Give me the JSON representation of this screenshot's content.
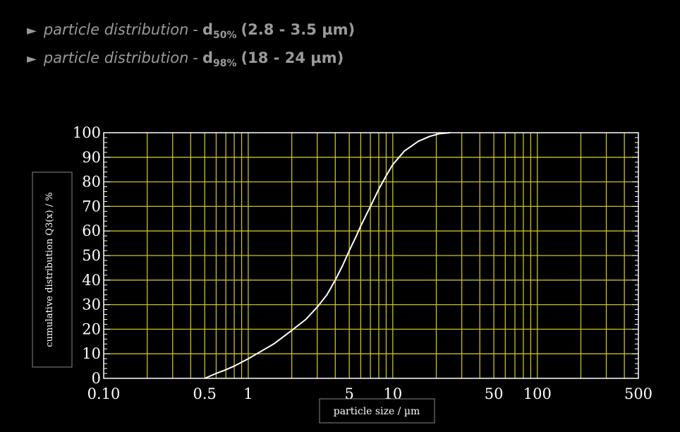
{
  "specs": [
    {
      "label": "particle distribution",
      "dash": "-",
      "symbol": "d",
      "subscript": "50%",
      "range": "(2.8 - 3.5 µm)"
    },
    {
      "label": "particle distribution",
      "dash": "-",
      "symbol": "d",
      "subscript": "98%",
      "range": "(18 - 24 µm)"
    }
  ],
  "chart_data": {
    "type": "line",
    "xscale": "log",
    "xlim": [
      0.1,
      500
    ],
    "ylim": [
      0,
      100
    ],
    "xlabel": "particle size / µm",
    "ylabel": "cumulative distribution Q3(x) / %",
    "x_ticks": [
      {
        "value": 0.1,
        "label": "0.10"
      },
      {
        "value": 0.5,
        "label": "0.5"
      },
      {
        "value": 1,
        "label": "1"
      },
      {
        "value": 5,
        "label": "5"
      },
      {
        "value": 10,
        "label": "10"
      },
      {
        "value": 50,
        "label": "50"
      },
      {
        "value": 100,
        "label": "100"
      },
      {
        "value": 500,
        "label": "500"
      }
    ],
    "y_ticks": [
      0,
      10,
      20,
      30,
      40,
      50,
      60,
      70,
      80,
      90,
      100
    ],
    "x_gridlines": [
      0.2,
      0.3,
      0.4,
      0.5,
      0.6,
      0.7,
      0.8,
      0.9,
      1,
      2,
      3,
      4,
      5,
      6,
      7,
      8,
      9,
      10,
      20,
      30,
      40,
      50,
      60,
      70,
      80,
      90,
      100,
      200,
      300,
      400
    ],
    "grid": true,
    "series": [
      {
        "x": [
          0.5,
          0.6,
          0.7,
          0.8,
          1.0,
          1.5,
          2.0,
          2.5,
          3.0,
          3.5,
          4.0,
          4.5,
          5.0,
          5.5,
          6.0,
          7.0,
          8.0,
          9.0,
          10,
          12,
          15,
          18,
          21,
          25
        ],
        "y": [
          0,
          2,
          3.5,
          5,
          8,
          14,
          19.5,
          24,
          29,
          34,
          40,
          46,
          52,
          57,
          62,
          70,
          77,
          82.5,
          87,
          92.5,
          96.5,
          98.5,
          99.6,
          100
        ]
      }
    ],
    "colors": {
      "background": "#000000",
      "grid": "#c8c028",
      "frame": "#ffffff",
      "curve": "#ffffff",
      "text": "#ffffff"
    }
  }
}
